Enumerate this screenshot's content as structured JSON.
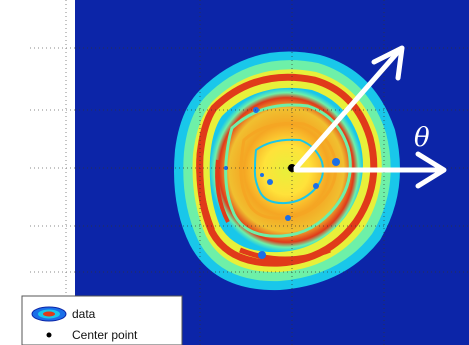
{
  "chart_data": {
    "type": "heatmap",
    "title": "",
    "xlabel": "",
    "ylabel": "",
    "grid": true,
    "background_color": "#0c25a8",
    "center_point": {
      "x": 0,
      "y": 0,
      "marker_color": "#000000"
    },
    "angle_annotation": {
      "symbol": "θ",
      "arrow_color": "#ffffff",
      "reference_direction_deg": 0,
      "rotated_direction_deg": 55
    },
    "legend": {
      "placement": "bottom-left",
      "entries": [
        "data",
        "Center point"
      ]
    },
    "colormap": [
      "#0c25a8",
      "#1b6fe8",
      "#19c7ea",
      "#6ef0a8",
      "#e8f03a",
      "#f5a623",
      "#e03a1a"
    ]
  }
}
